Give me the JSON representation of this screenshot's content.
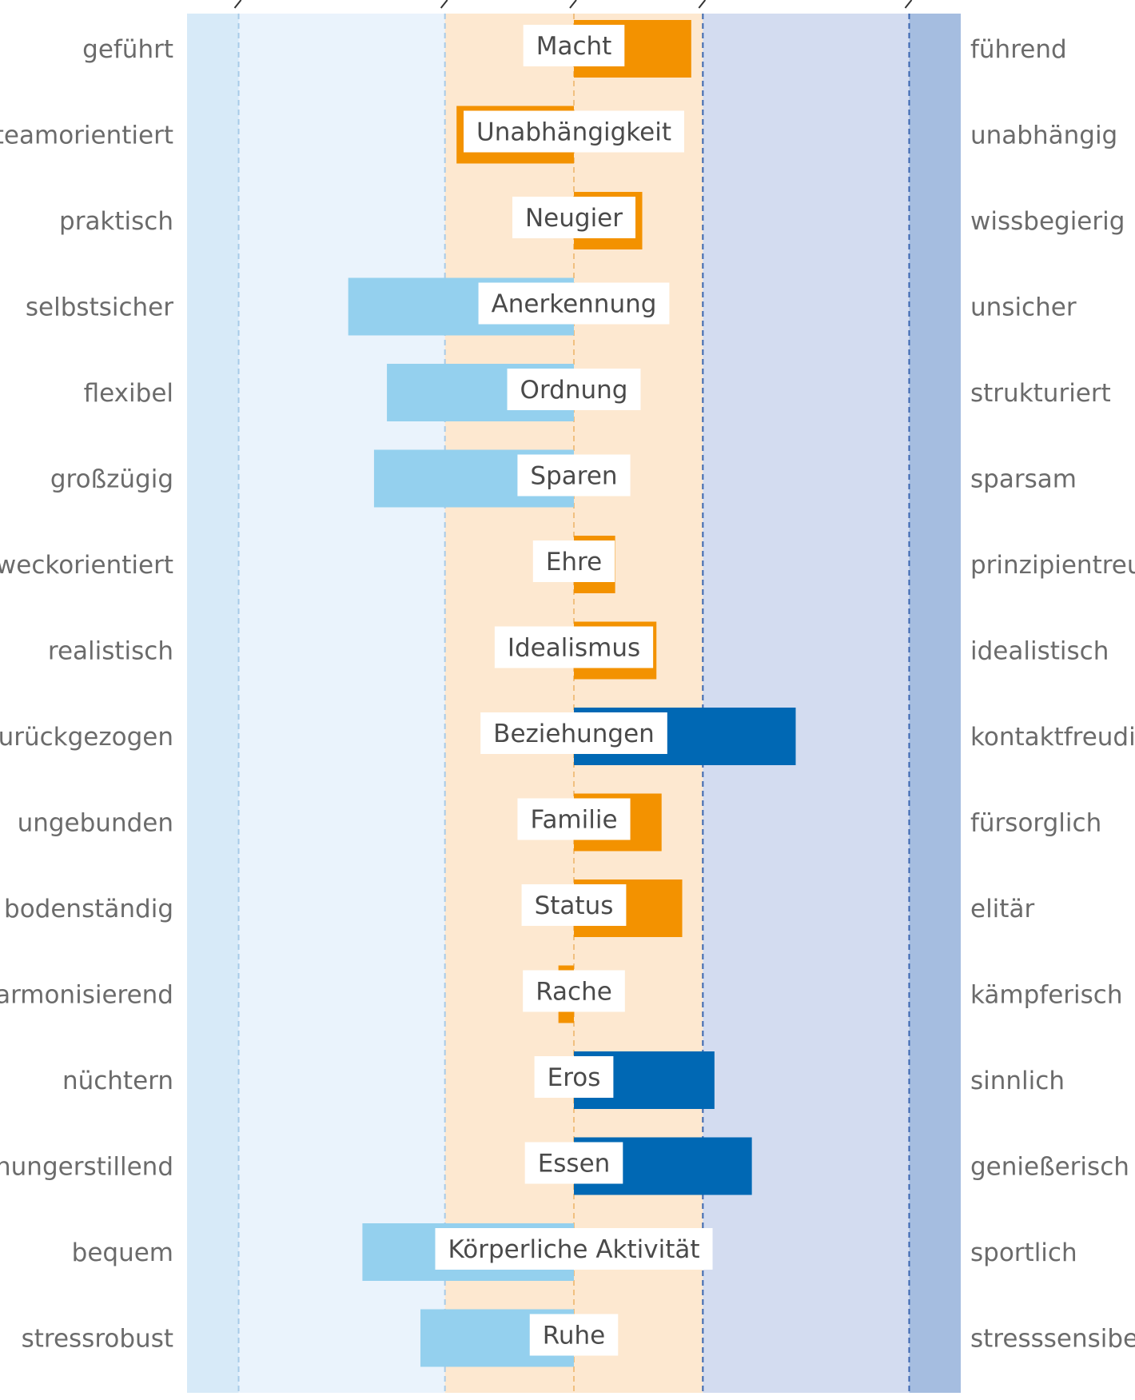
{
  "chart_data": {
    "type": "bar",
    "orientation": "horizontal",
    "diverging": true,
    "xlim": [
      -3,
      3
    ],
    "zones": [
      {
        "from": -3.0,
        "to": -2.6,
        "color": "#d7eaf8"
      },
      {
        "from": -2.6,
        "to": -1.0,
        "color": "#eaf3fc"
      },
      {
        "from": -1.0,
        "to": 1.0,
        "color": "#fde8d0"
      },
      {
        "from": 1.0,
        "to": 2.6,
        "color": "#d3dcf0"
      },
      {
        "from": 2.6,
        "to": 3.0,
        "color": "#a5bde0"
      }
    ],
    "dashed_lines": [
      {
        "at": -2.6,
        "color": "#a8cbe8"
      },
      {
        "at": -1.0,
        "color": "#a8cbe8"
      },
      {
        "at": 0.0,
        "color": "#f0c080"
      },
      {
        "at": 1.0,
        "color": "#3a66b0"
      },
      {
        "at": 2.6,
        "color": "#3a66b0"
      }
    ],
    "colors": {
      "negative": "#94d0ee",
      "neutral": "#f39200",
      "positive": "#0068b4"
    },
    "rows": [
      {
        "category": "Macht",
        "left": "geführt",
        "right": "führend",
        "value": 0.91,
        "color": "neutral"
      },
      {
        "category": "Unabhängigkeit",
        "left": "teamorientiert",
        "right": "unabhängig",
        "value": -0.91,
        "color": "neutral"
      },
      {
        "category": "Neugier",
        "left": "praktisch",
        "right": "wissbegierig",
        "value": 0.53,
        "color": "neutral"
      },
      {
        "category": "Anerkennung",
        "left": "selbstsicher",
        "right": "unsicher",
        "value": -1.75,
        "color": "negative"
      },
      {
        "category": "Ordnung",
        "left": "flexibel",
        "right": "strukturiert",
        "value": -1.45,
        "color": "negative"
      },
      {
        "category": "Sparen",
        "left": "großzügig",
        "right": "sparsam",
        "value": -1.55,
        "color": "negative"
      },
      {
        "category": "Ehre",
        "left": "zweckorientiert",
        "right": "prinzipientreu",
        "value": 0.32,
        "color": "neutral"
      },
      {
        "category": "Idealismus",
        "left": "realistisch",
        "right": "idealistisch",
        "value": 0.64,
        "color": "neutral"
      },
      {
        "category": "Beziehungen",
        "left": "zurückgezogen",
        "right": "kontaktfreudig",
        "value": 1.72,
        "color": "positive"
      },
      {
        "category": "Familie",
        "left": "ungebunden",
        "right": "fürsorglich",
        "value": 0.68,
        "color": "neutral"
      },
      {
        "category": "Status",
        "left": "bodenständig",
        "right": "elitär",
        "value": 0.84,
        "color": "neutral"
      },
      {
        "category": "Rache",
        "left": "harmonisierend",
        "right": "kämpferisch",
        "value": -0.12,
        "color": "neutral"
      },
      {
        "category": "Eros",
        "left": "nüchtern",
        "right": "sinnlich",
        "value": 1.09,
        "color": "positive"
      },
      {
        "category": "Essen",
        "left": "hungerstillend",
        "right": "genießerisch",
        "value": 1.38,
        "color": "positive"
      },
      {
        "category": "Körperliche Aktivität",
        "left": "bequem",
        "right": "sportlich",
        "value": -1.64,
        "color": "negative"
      },
      {
        "category": "Ruhe",
        "left": "stressrobust",
        "right": "stresssensibel",
        "value": -1.19,
        "color": "negative"
      }
    ]
  }
}
